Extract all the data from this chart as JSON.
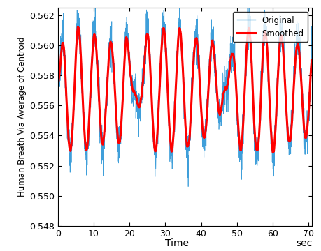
{
  "title": "",
  "xlabel": "Time",
  "xlabel_right": "sec",
  "ylabel": "Human Breath Via Average of Centroid",
  "xlim": [
    0,
    71
  ],
  "ylim": [
    0.548,
    0.5625
  ],
  "yticks": [
    0.548,
    0.55,
    0.552,
    0.554,
    0.556,
    0.558,
    0.56,
    0.562
  ],
  "xticks": [
    0,
    10,
    20,
    30,
    40,
    50,
    60,
    70
  ],
  "original_color": "#3f9fda",
  "smoothed_color": "#ff0000",
  "smoothed_linewidth": 2.2,
  "original_linewidth": 0.5,
  "legend_labels": [
    "Original",
    "Smoothed"
  ],
  "background_color": "#ffffff",
  "figsize": [
    4.6,
    3.6
  ],
  "dpi": 100
}
